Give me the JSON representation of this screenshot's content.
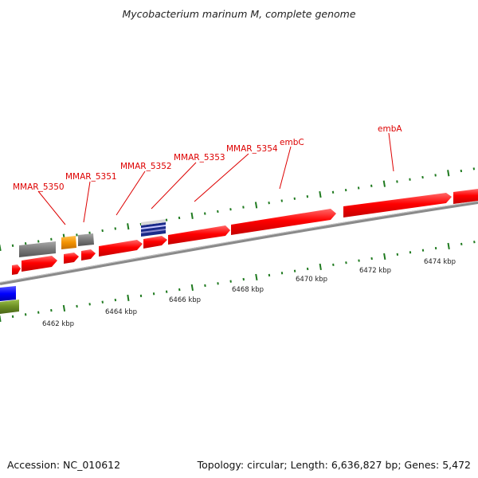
{
  "title": "Mycobacterium marinum M, complete genome",
  "footer": {
    "accession": "Accession: NC_010612",
    "meta": "Topology: circular; Length: 6,636,827 bp; Genes: 5,472"
  },
  "colors": {
    "gene_red": "#ff0000",
    "gene_gray": "#7a7a7a",
    "gene_orange": "#f39200",
    "gene_navy": "#1a2a8a",
    "gene_blue": "#0000ff",
    "gene_olive": "#6b8e23",
    "backbone": "#8a8a8a",
    "tick_green": "#1f7a1f",
    "label_red": "#dd0000"
  },
  "gene_labels": [
    "MMAR_5350",
    "MMAR_5351",
    "MMAR_5352",
    "MMAR_5353",
    "MMAR_5354",
    "embC",
    "embA"
  ],
  "kbp_ticks": [
    "6462 kbp",
    "6464 kbp",
    "6466 kbp",
    "6468 kbp",
    "6470 kbp",
    "6472 kbp",
    "6474 kbp"
  ]
}
